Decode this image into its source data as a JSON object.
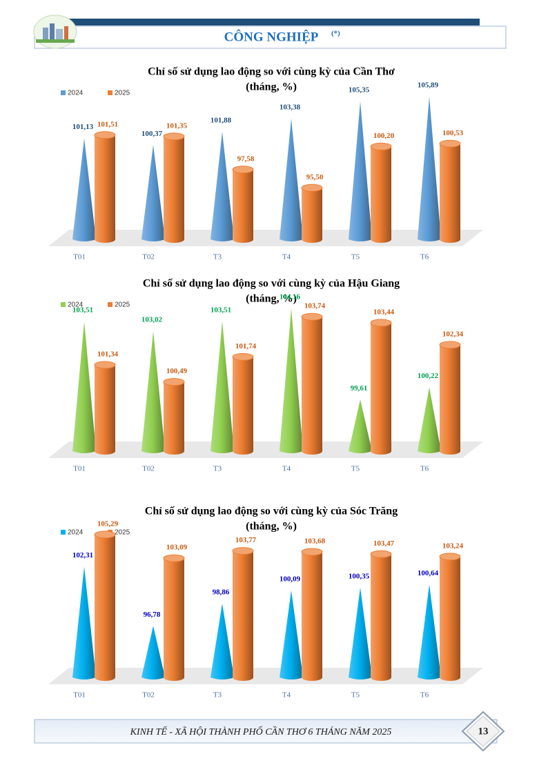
{
  "header": {
    "title": "CÔNG NGHIỆP",
    "note": "(*)"
  },
  "chart_data": [
    {
      "type": "bar3d",
      "title": "Chỉ số sử dụng lao động so với cùng kỳ của Cần Thơ",
      "subtitle": "(tháng, %)",
      "categories": [
        "T01",
        "T02",
        "T3",
        "T4",
        "T5",
        "T6"
      ],
      "series": [
        {
          "name": "2024",
          "shape": "cone",
          "color": "#5b9bd5",
          "label_color": "#1f4e79",
          "values": [
            101.13,
            100.37,
            101.88,
            103.38,
            105.35,
            105.89
          ],
          "value_labels": [
            "101,13",
            "100,37",
            "101,88",
            "103,38",
            "105,35",
            "105,89"
          ]
        },
        {
          "name": "2025",
          "shape": "cylinder",
          "color": "#ed7d31",
          "label_color": "#c55a11",
          "values": [
            101.51,
            101.35,
            97.58,
            95.5,
            100.2,
            100.53
          ],
          "value_labels": [
            "101,51",
            "101,35",
            "97,58",
            "95,50",
            "100,20",
            "100,53"
          ]
        }
      ]
    },
    {
      "type": "bar3d",
      "title": "Chỉ số sử dụng lao động so với cùng kỳ của Hậu Giang",
      "subtitle": "(tháng, %)",
      "categories": [
        "T01",
        "T02",
        "T3",
        "T4",
        "T5",
        "T6"
      ],
      "series": [
        {
          "name": "2024",
          "shape": "cone",
          "color": "#92d050",
          "label_color": "#00a050",
          "values": [
            103.51,
            103.02,
            103.51,
            104.16,
            99.61,
            100.22
          ],
          "value_labels": [
            "103,51",
            "103,02",
            "103,51",
            "104,16",
            "99,61",
            "100,22"
          ]
        },
        {
          "name": "2025",
          "shape": "cylinder",
          "color": "#ed7d31",
          "label_color": "#c55a11",
          "values": [
            101.34,
            100.49,
            101.74,
            103.74,
            103.44,
            102.34
          ],
          "value_labels": [
            "101,34",
            "100,49",
            "101,74",
            "103,74",
            "103,44",
            "102,34"
          ]
        }
      ]
    },
    {
      "type": "bar3d",
      "title": "Chỉ số sử dụng lao động so với cùng kỳ của Sóc Trăng",
      "subtitle": "(tháng, %)",
      "categories": [
        "T01",
        "T02",
        "T3",
        "T4",
        "T5",
        "T6"
      ],
      "series": [
        {
          "name": "2024",
          "shape": "cone",
          "color": "#00b0f0",
          "label_color": "#0000c0",
          "values": [
            102.31,
            96.78,
            98.86,
            100.09,
            100.35,
            100.64
          ],
          "value_labels": [
            "102,31",
            "96,78",
            "98,86",
            "100,09",
            "100,35",
            "100,64"
          ]
        },
        {
          "name": "2025",
          "shape": "cylinder",
          "color": "#ed7d31",
          "label_color": "#c55a11",
          "values": [
            105.29,
            103.09,
            103.77,
            103.68,
            103.47,
            103.24
          ],
          "value_labels": [
            "105,29",
            "103,09",
            "103,77",
            "103,68",
            "103,47",
            "103,24"
          ]
        }
      ]
    }
  ],
  "footer": {
    "text": "KINH TẾ - XÃ HỘI THÀNH PHỐ CẦN THƠ 6 THÁNG NĂM 2025",
    "page": "13"
  }
}
